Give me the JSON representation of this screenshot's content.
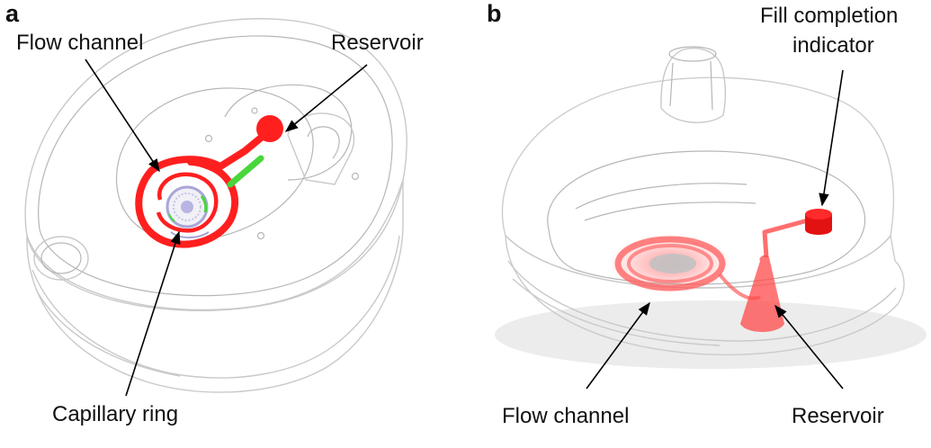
{
  "panels": {
    "a": {
      "letter": "a",
      "labels": {
        "flow_channel": "Flow channel",
        "reservoir": "Reservoir",
        "capillary_ring": "Capillary ring"
      }
    },
    "b": {
      "letter": "b",
      "labels": {
        "fill_completion_line1": "Fill completion",
        "fill_completion_line2": "indicator",
        "flow_channel": "Flow channel",
        "reservoir": "Reservoir"
      }
    }
  },
  "colors": {
    "channel_red": "#ff1f1f",
    "indicator_green": "#48d63a",
    "ring_purple": "#a9a6d8",
    "device_outline": "#c9c9c9",
    "translucent_shell": "#e6e6e6"
  }
}
